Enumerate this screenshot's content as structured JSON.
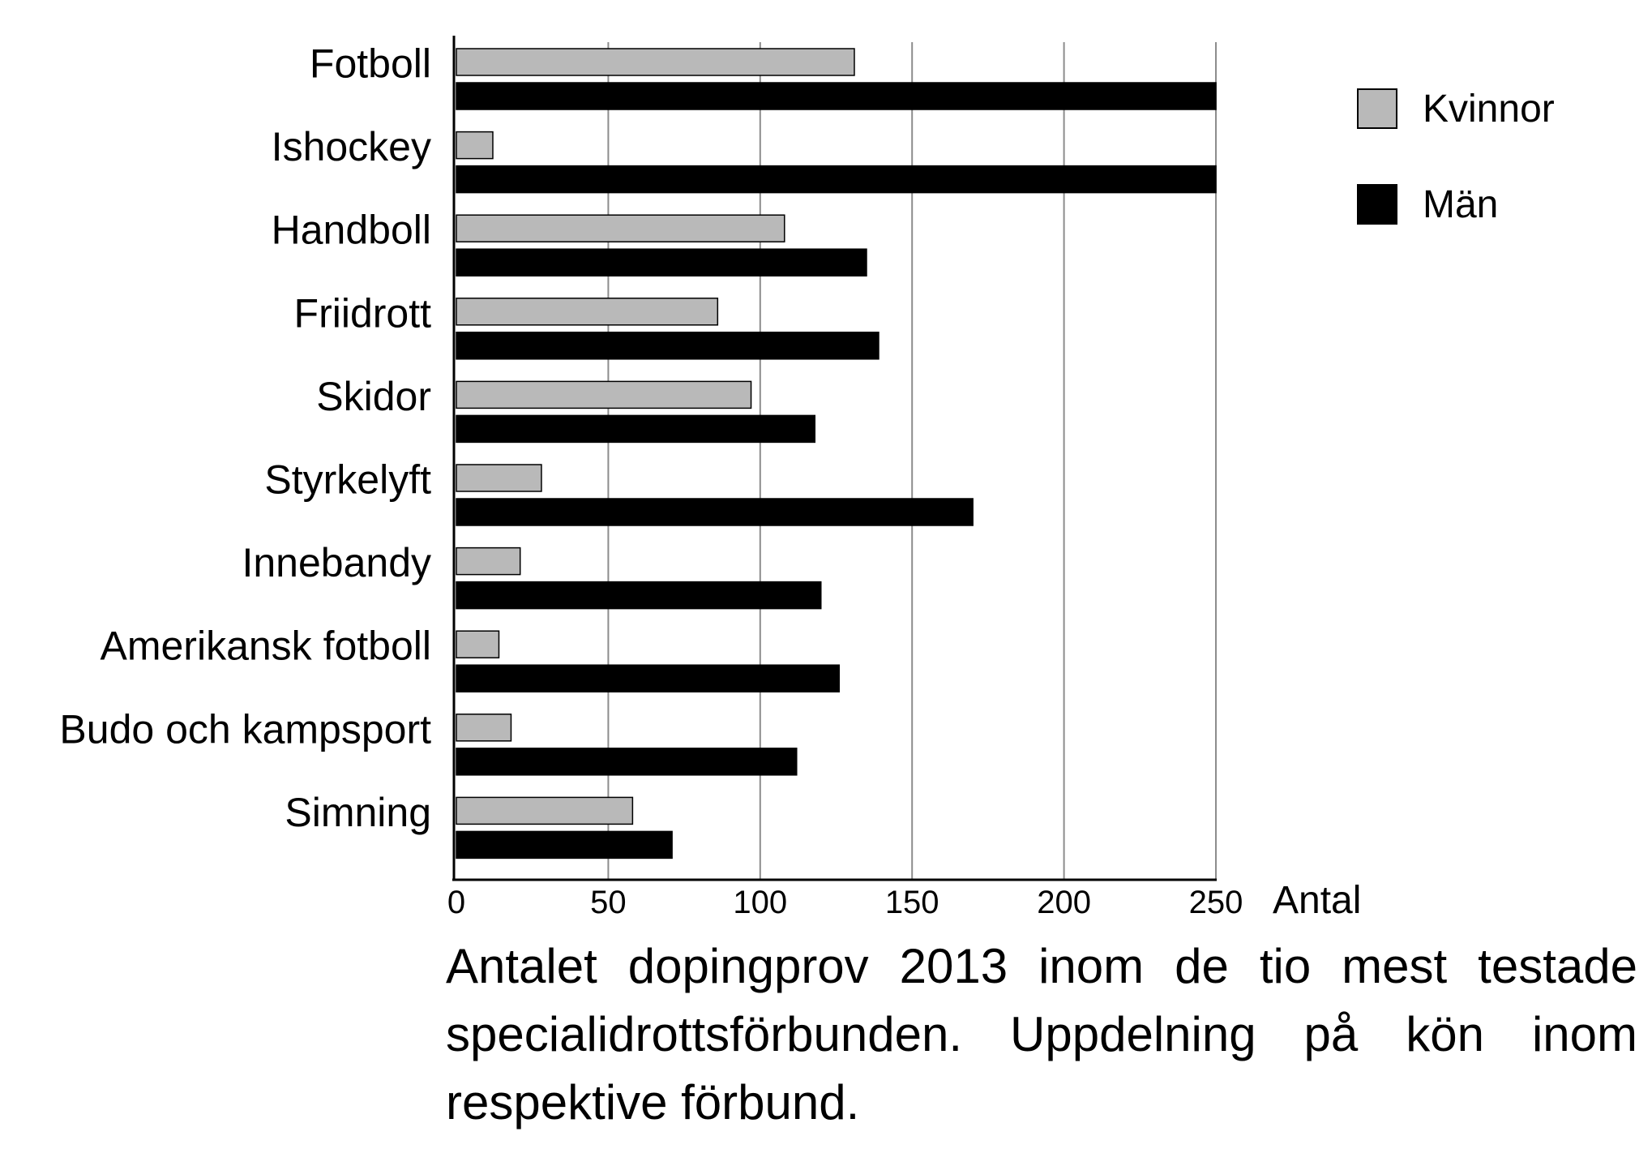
{
  "chart_data": {
    "type": "bar",
    "orientation": "horizontal",
    "categories": [
      "Fotboll",
      "Ishockey",
      "Handboll",
      "Friidrott",
      "Skidor",
      "Styrkelyft",
      "Innebandy",
      "Amerikansk fotboll",
      "Budo och kampsport",
      "Simning"
    ],
    "series": [
      {
        "name": "Kvinnor",
        "color": "#b9b9b9",
        "values": [
          131,
          12,
          108,
          86,
          97,
          28,
          21,
          14,
          18,
          58
        ]
      },
      {
        "name": "Män",
        "color": "#000000",
        "values": [
          250,
          250,
          135,
          139,
          118,
          170,
          120,
          126,
          112,
          71
        ]
      }
    ],
    "xlabel": "Antal",
    "xlim": [
      0,
      250
    ],
    "xticks": [
      "0",
      "50",
      "100",
      "150",
      "200",
      "250"
    ],
    "grid": "vertical",
    "legend_position": "top-right",
    "caption": "Antalet dopingprov 2013 inom de tio mest testade specialidrottsförbunden. Uppdelning på kön inom respektive förbund."
  }
}
